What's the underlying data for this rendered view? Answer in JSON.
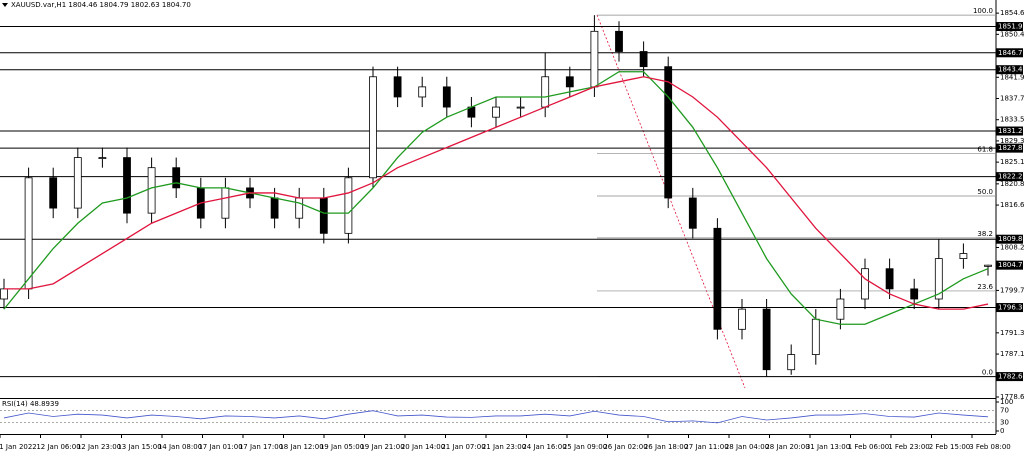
{
  "chart_data": {
    "type": "candlestick",
    "title": "XAUUSD.var,H1 1804.46 1804.79 1802.63 1804.70",
    "ylim": [
      1778.4,
      1857.2
    ],
    "yticks": [
      {
        "value": 1854.6,
        "label": "1854.60"
      },
      {
        "value": 1850.4,
        "label": "1850.40"
      },
      {
        "value": 1841.9,
        "label": "1841.90"
      },
      {
        "value": 1837.7,
        "label": "1837.70"
      },
      {
        "value": 1833.5,
        "label": "1833.50"
      },
      {
        "value": 1829.3,
        "label": "1829.30"
      },
      {
        "value": 1825.1,
        "label": "1825.10"
      },
      {
        "value": 1820.8,
        "label": "1820.80"
      },
      {
        "value": 1816.6,
        "label": "1816.60"
      },
      {
        "value": 1808.2,
        "label": "1808.20"
      },
      {
        "value": 1799.7,
        "label": "1799.70"
      },
      {
        "value": 1791.3,
        "label": "1791.30"
      },
      {
        "value": 1787.1,
        "label": "1787.10"
      },
      {
        "value": 1778.6,
        "label": "1778.60"
      }
    ],
    "x_labels": [
      "1 Jan 2022",
      "12 Jan 06:00",
      "12 Jan 23:00",
      "13 Jan 15:00",
      "14 Jan 08:00",
      "17 Jan 01:00",
      "17 Jan 17:00",
      "18 Jan 12:00",
      "19 Jan 05:00",
      "19 Jan 21:00",
      "20 Jan 14:00",
      "21 Jan 07:00",
      "21 Jan 23:00",
      "24 Jan 16:00",
      "25 Jan 09:00",
      "26 Jan 02:00",
      "26 Jan 18:00",
      "27 Jan 11:00",
      "28 Jan 04:00",
      "28 Jan 20:00",
      "31 Jan 13:00",
      "1 Feb 06:00",
      "1 Feb 23:00",
      "2 Feb 15:00",
      "3 Feb 08:00"
    ],
    "open": [
      1798,
      1800,
      1822,
      1816,
      1826,
      1826,
      1815,
      1824,
      1820,
      1814,
      1820,
      1818,
      1814,
      1818,
      1811,
      1822,
      1842,
      1838,
      1840,
      1836,
      1834,
      1836,
      1836,
      1842,
      1840,
      1851,
      1847,
      1844,
      1818,
      1812,
      1792,
      1796,
      1784,
      1787,
      1794,
      1798,
      1804,
      1800,
      1798,
      1806,
      1804.46
    ],
    "high": [
      1802,
      1824,
      1824,
      1828,
      1828,
      1828,
      1826,
      1826,
      1822,
      1822,
      1822,
      1820,
      1820,
      1820,
      1824,
      1844,
      1844,
      1842,
      1842,
      1838,
      1838,
      1838,
      1846.75,
      1844,
      1854.2,
      1853,
      1849,
      1846,
      1820,
      1814,
      1798,
      1798,
      1789,
      1796,
      1800,
      1806,
      1806,
      1802,
      1809.84,
      1809,
      1804.79
    ],
    "low": [
      1796,
      1798,
      1814,
      1814,
      1824,
      1813,
      1813,
      1818,
      1812,
      1812,
      1816,
      1812,
      1812,
      1809,
      1809,
      1820,
      1836,
      1836,
      1834,
      1832,
      1832,
      1834,
      1834,
      1838,
      1838,
      1845,
      1842,
      1816,
      1810,
      1790,
      1790,
      1782.64,
      1783,
      1785,
      1792,
      1796,
      1798,
      1796,
      1796,
      1804,
      1802.63
    ],
    "close": [
      1800,
      1822,
      1816,
      1826,
      1826,
      1815,
      1824,
      1820,
      1814,
      1820,
      1818,
      1814,
      1818,
      1811,
      1822,
      1842,
      1838,
      1840,
      1836,
      1834,
      1836,
      1836,
      1842,
      1840,
      1851,
      1847,
      1844,
      1818,
      1812,
      1792,
      1796,
      1784,
      1787,
      1794,
      1798,
      1804,
      1800,
      1798,
      1806,
      1807,
      1804.7
    ],
    "series": [
      {
        "color": "#1f9a1f",
        "values": [
          1796,
          1802,
          1808,
          1813,
          1817,
          1818,
          1820,
          1821,
          1820,
          1820,
          1819,
          1818,
          1817,
          1815,
          1815,
          1820,
          1826,
          1831,
          1834,
          1836,
          1838,
          1838,
          1838,
          1839,
          1840,
          1843,
          1843,
          1838,
          1832,
          1824,
          1815,
          1806,
          1799,
          1794,
          1793,
          1793,
          1795,
          1797,
          1799,
          1802,
          1804
        ]
      },
      {
        "color": "#e0143c",
        "values": [
          1800,
          1800,
          1801,
          1804,
          1807,
          1810,
          1813,
          1815,
          1817,
          1818,
          1819,
          1819,
          1818,
          1818,
          1819,
          1821,
          1824,
          1826,
          1828,
          1830,
          1832,
          1834,
          1836,
          1838,
          1840,
          1841,
          1842,
          1841,
          1838,
          1834,
          1829,
          1824,
          1818,
          1812,
          1807,
          1802,
          1799,
          1797,
          1796,
          1796,
          1797
        ]
      }
    ],
    "levels": [
      {
        "value": 1851.95,
        "label": "1851.95"
      },
      {
        "value": 1846.75,
        "label": "1846.75"
      },
      {
        "value": 1843.4,
        "label": "1843.40"
      },
      {
        "value": 1831.26,
        "label": "1831.26"
      },
      {
        "value": 1827.87,
        "label": "1827.87"
      },
      {
        "value": 1822.23,
        "label": "1822.23"
      },
      {
        "value": 1809.84,
        "label": "1809.84"
      },
      {
        "value": 1796.31,
        "label": "1796.31"
      },
      {
        "value": 1782.64,
        "label": "1782.64"
      }
    ],
    "last_price": {
      "value": 1804.7,
      "label": "1804.70"
    },
    "fib": [
      {
        "label": "100.0",
        "value": 1854.2
      },
      {
        "label": "61.8",
        "value": 1826.8
      },
      {
        "label": "50.0",
        "value": 1818.4
      },
      {
        "label": "38.2",
        "value": 1810.1
      },
      {
        "label": "23.6",
        "value": 1799.6
      },
      {
        "label": "0.0",
        "value": 1782.64
      }
    ],
    "rsi": {
      "title": "RSI(14) 48.8939",
      "ylim": [
        0,
        100
      ],
      "yticks": [
        100,
        70,
        30,
        0
      ],
      "color": "#4455cc",
      "values": [
        45,
        62,
        50,
        58,
        55,
        45,
        55,
        50,
        42,
        52,
        50,
        45,
        52,
        42,
        58,
        70,
        52,
        55,
        48,
        47,
        52,
        52,
        58,
        52,
        68,
        55,
        50,
        32,
        35,
        28,
        50,
        38,
        45,
        55,
        55,
        60,
        50,
        48,
        62,
        55,
        48.8939
      ]
    }
  }
}
